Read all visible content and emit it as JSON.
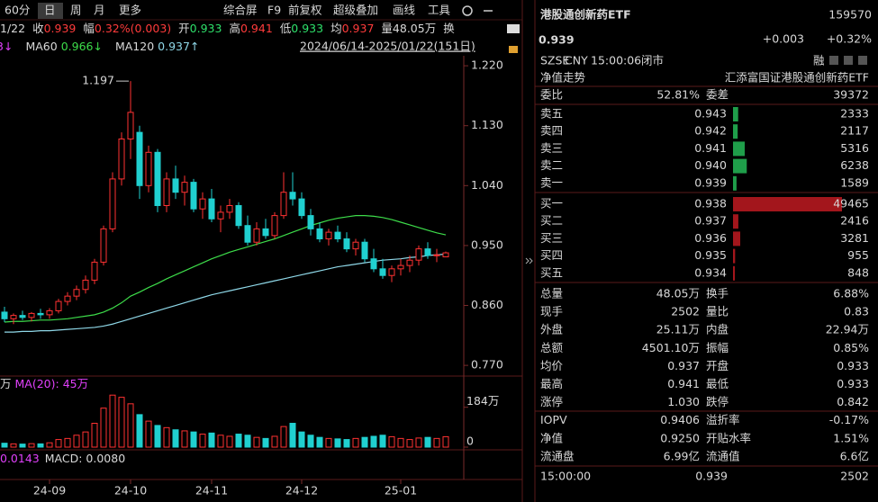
{
  "toolbar": {
    "periods": [
      "60分",
      "日",
      "周",
      "月",
      "更多"
    ],
    "tools": [
      "综合屏",
      "F9",
      "前复权",
      "超级叠加",
      "画线",
      "工具"
    ]
  },
  "info_bar": {
    "date": "1/22",
    "items": [
      {
        "label": "收",
        "value": "0.939",
        "color": "#ff3b3b"
      },
      {
        "label": "幅",
        "value": "0.32%(0.003)",
        "color": "#ff3b3b"
      },
      {
        "label": "开",
        "value": "0.933",
        "color": "#2ee06a"
      },
      {
        "label": "高",
        "value": "0.941",
        "color": "#ff3b3b"
      },
      {
        "label": "低",
        "value": "0.933",
        "color": "#2ee06a"
      },
      {
        "label": "均",
        "value": "0.937",
        "color": "#ff3b3b"
      },
      {
        "label": "量",
        "value": "48.05万",
        "color": "#d8d8d8"
      },
      {
        "label": "换",
        "value": "",
        "color": "#d8d8d8"
      }
    ]
  },
  "ma_legend": {
    "text": "3↓",
    "color": "#e040fb"
  },
  "range_label": "2024/06/14-2025/01/22(151日)",
  "chart_data": {
    "type": "candlestick",
    "categories": [
      null,
      null,
      null,
      null,
      null,
      "24-09",
      null,
      null,
      null,
      null,
      null,
      null,
      null,
      null,
      "24-10",
      null,
      null,
      null,
      null,
      null,
      null,
      null,
      null,
      "24-11",
      null,
      null,
      null,
      null,
      null,
      null,
      null,
      null,
      null,
      "24-12",
      null,
      null,
      null,
      null,
      null,
      null,
      null,
      null,
      null,
      null,
      "25-01",
      null,
      null,
      null,
      null,
      null
    ],
    "open": [
      0.85,
      0.84,
      0.845,
      0.842,
      0.848,
      0.846,
      0.852,
      0.866,
      0.874,
      0.884,
      0.898,
      0.925,
      0.975,
      1.05,
      1.11,
      1.12,
      1.04,
      1.09,
      1.01,
      1.05,
      1.03,
      1.045,
      1.005,
      1.02,
      0.99,
      1.0,
      1.01,
      0.98,
      0.955,
      0.975,
      0.965,
      0.995,
      1.03,
      1.02,
      0.995,
      0.975,
      0.96,
      0.97,
      0.96,
      0.945,
      0.955,
      0.93,
      0.915,
      0.905,
      0.915,
      0.92,
      0.928,
      0.945,
      0.935,
      0.933
    ],
    "high": [
      0.858,
      0.848,
      0.852,
      0.85,
      0.855,
      0.856,
      0.87,
      0.88,
      0.89,
      0.905,
      0.93,
      0.98,
      1.06,
      1.12,
      1.197,
      1.13,
      1.1,
      1.095,
      1.06,
      1.07,
      1.055,
      1.05,
      1.03,
      1.035,
      1.01,
      1.02,
      1.015,
      0.995,
      0.985,
      0.99,
      1.0,
      1.06,
      1.06,
      1.03,
      1.005,
      0.985,
      0.975,
      0.98,
      0.97,
      0.96,
      0.96,
      0.945,
      0.93,
      0.92,
      0.93,
      0.935,
      0.95,
      0.955,
      0.945,
      0.941
    ],
    "low": [
      0.835,
      0.832,
      0.838,
      0.836,
      0.84,
      0.84,
      0.848,
      0.86,
      0.868,
      0.878,
      0.892,
      0.92,
      0.97,
      1.04,
      1.08,
      1.02,
      1.03,
      1.0,
      1.0,
      1.02,
      1.01,
      1.0,
      0.99,
      0.985,
      0.97,
      0.99,
      0.975,
      0.95,
      0.95,
      0.96,
      0.96,
      0.99,
      1.01,
      0.99,
      0.965,
      0.955,
      0.95,
      0.955,
      0.94,
      0.935,
      0.925,
      0.91,
      0.9,
      0.895,
      0.905,
      0.91,
      0.92,
      0.93,
      0.925,
      0.933
    ],
    "close": [
      0.84,
      0.845,
      0.842,
      0.848,
      0.846,
      0.852,
      0.866,
      0.874,
      0.884,
      0.898,
      0.925,
      0.975,
      1.05,
      1.11,
      1.15,
      1.04,
      1.09,
      1.01,
      1.05,
      1.03,
      1.045,
      1.005,
      1.02,
      0.99,
      1.0,
      1.01,
      0.98,
      0.955,
      0.975,
      0.965,
      0.995,
      1.03,
      1.02,
      0.995,
      0.975,
      0.96,
      0.97,
      0.96,
      0.945,
      0.955,
      0.93,
      0.915,
      0.905,
      0.915,
      0.92,
      0.928,
      0.945,
      0.935,
      0.936,
      0.939
    ],
    "up_color": "#ff3232",
    "down_color": "#20d0d0",
    "ylim": [
      0.758,
      1.235
    ],
    "yticks": [
      {
        "value": 0.77,
        "label": "0.770"
      },
      {
        "value": 0.86,
        "label": "0.860"
      },
      {
        "value": 0.95,
        "label": "0.950"
      },
      {
        "value": 1.04,
        "label": "1.040"
      },
      {
        "value": 1.13,
        "label": "1.130"
      },
      {
        "value": 1.22,
        "label": "1.220"
      }
    ],
    "ma": [
      {
        "name": "MA60",
        "legend_value": "0.966↓",
        "color": "#3ddc4a",
        "values": [
          0.835,
          0.836,
          0.836,
          0.837,
          0.838,
          0.838,
          0.839,
          0.84,
          0.842,
          0.844,
          0.846,
          0.85,
          0.856,
          0.864,
          0.874,
          0.88,
          0.887,
          0.893,
          0.9,
          0.906,
          0.912,
          0.918,
          0.924,
          0.93,
          0.935,
          0.94,
          0.944,
          0.948,
          0.952,
          0.956,
          0.96,
          0.965,
          0.97,
          0.975,
          0.98,
          0.984,
          0.988,
          0.991,
          0.993,
          0.995,
          0.995,
          0.994,
          0.992,
          0.989,
          0.985,
          0.981,
          0.977,
          0.973,
          0.969,
          0.966
        ]
      },
      {
        "name": "MA120",
        "legend_value": "0.937↑",
        "color": "#8fd8e8",
        "values": [
          0.82,
          0.82,
          0.821,
          0.821,
          0.822,
          0.822,
          0.823,
          0.824,
          0.825,
          0.826,
          0.827,
          0.829,
          0.832,
          0.836,
          0.84,
          0.844,
          0.848,
          0.852,
          0.856,
          0.86,
          0.864,
          0.868,
          0.872,
          0.876,
          0.879,
          0.882,
          0.885,
          0.888,
          0.891,
          0.894,
          0.897,
          0.9,
          0.903,
          0.906,
          0.909,
          0.912,
          0.915,
          0.918,
          0.92,
          0.922,
          0.924,
          0.926,
          0.928,
          0.929,
          0.93,
          0.932,
          0.933,
          0.935,
          0.936,
          0.937
        ]
      }
    ],
    "volume": {
      "values": [
        18,
        15,
        14,
        16,
        15,
        20,
        35,
        40,
        55,
        70,
        110,
        180,
        240,
        230,
        200,
        150,
        120,
        100,
        90,
        80,
        75,
        70,
        60,
        65,
        55,
        50,
        60,
        55,
        45,
        40,
        50,
        95,
        110,
        70,
        55,
        45,
        40,
        38,
        35,
        40,
        45,
        50,
        55,
        48,
        40,
        35,
        42,
        45,
        40,
        48
      ],
      "ylim": [
        0,
        245
      ],
      "yticks": [
        0,
        {
          "value": 184,
          "label": "184万"
        }
      ],
      "legend": [
        "万",
        "MA(20): 45万"
      ]
    },
    "macd_legend": [
      "0.0143",
      "MACD: 0.0080"
    ]
  },
  "quote": {
    "name": "港股通创新药ETF",
    "code": "159570",
    "price": "0.939",
    "change": "+0.003",
    "change_pct": "+0.32%",
    "status": [
      "SZSE",
      "CNY",
      "15:00:06",
      "闭市"
    ],
    "badge": "融",
    "nav_link": "净值走势",
    "full_name": "汇添富国证港股通创新药ETF",
    "ratio": [
      {
        "label": "委比",
        "value": "52.81%",
        "color": "#ff3b3b"
      },
      {
        "label": "委差",
        "value": "39372",
        "color": "#ff3b3b"
      }
    ],
    "sell": {
      "bar_color": "#1f9e4a",
      "rows": [
        {
          "label": "卖五",
          "price": "0.943",
          "volume": 2333,
          "color": "#ff3b3b"
        },
        {
          "label": "卖四",
          "price": "0.942",
          "volume": 2117,
          "color": "#ff3b3b"
        },
        {
          "label": "卖三",
          "price": "0.941",
          "volume": 5316,
          "color": "#ff3b3b"
        },
        {
          "label": "卖二",
          "price": "0.940",
          "volume": 6238,
          "color": "#ff3b3b"
        },
        {
          "label": "卖一",
          "price": "0.939",
          "volume": 1589,
          "color": "#ff3b3b"
        }
      ]
    },
    "buy": {
      "bar_color": "#a3161c",
      "rows": [
        {
          "label": "买一",
          "price": "0.938",
          "volume": 49465,
          "color": "#ff3b3b"
        },
        {
          "label": "买二",
          "price": "0.937",
          "volume": 2416,
          "color": "#ff3b3b"
        },
        {
          "label": "买三",
          "price": "0.936",
          "volume": 3281,
          "color": "#d8d8d8"
        },
        {
          "label": "买四",
          "price": "0.935",
          "volume": 955,
          "color": "#2ee06a"
        },
        {
          "label": "买五",
          "price": "0.934",
          "volume": 848,
          "color": "#2ee06a"
        }
      ]
    },
    "stats": [
      [
        {
          "label": "总量",
          "value": "48.05万",
          "color": "#d8d8d8"
        },
        {
          "label": "换手",
          "value": "6.88%",
          "color": "#d8d8d8"
        }
      ],
      [
        {
          "label": "现手",
          "value": "2502",
          "color": "#d8d8d8"
        },
        {
          "label": "量比",
          "value": "0.83",
          "color": "#d8d8d8"
        }
      ],
      [
        {
          "label": "外盘",
          "value": "25.11万",
          "color": "#ff3b3b"
        },
        {
          "label": "内盘",
          "value": "22.94万",
          "color": "#2ee06a"
        }
      ],
      [
        {
          "label": "总额",
          "value": "4501.10万",
          "color": "#d8d8d8"
        },
        {
          "label": "振幅",
          "value": "0.85%",
          "color": "#d8d8d8"
        }
      ],
      [
        {
          "label": "均价",
          "value": "0.937",
          "color": "#ff3b3b"
        },
        {
          "label": "开盘",
          "value": "0.933",
          "color": "#2ee06a"
        }
      ],
      [
        {
          "label": "最高",
          "value": "0.941",
          "color": "#ff3b3b"
        },
        {
          "label": "最低",
          "value": "0.933",
          "color": "#2ee06a"
        }
      ],
      [
        {
          "label": "涨停",
          "value": "1.030",
          "color": "#ff3b3b"
        },
        {
          "label": "跌停",
          "value": "0.842",
          "color": "#2ee06a"
        }
      ],
      [
        {
          "label": "IOPV",
          "value": "0.9406",
          "color": "#d8d8d8"
        },
        {
          "label": "溢折率",
          "value": "-0.17%",
          "color": "#2ee06a"
        }
      ],
      [
        {
          "label": "净值",
          "value": "0.9250",
          "color": "#2ee06a"
        },
        {
          "label": "开贴水率",
          "value": "1.51%",
          "color": "#ff3b3b"
        }
      ],
      [
        {
          "label": "流通盘",
          "value": "6.99亿",
          "color": "#d8d8d8"
        },
        {
          "label": "流通值",
          "value": "6.6亿",
          "color": "#d8d8d8"
        }
      ]
    ],
    "last_trade": {
      "time": "15:00:00",
      "price": "0.939",
      "volume": "2502",
      "price_color": "#ff3b3b",
      "volume_color": "#2ee06a"
    }
  }
}
